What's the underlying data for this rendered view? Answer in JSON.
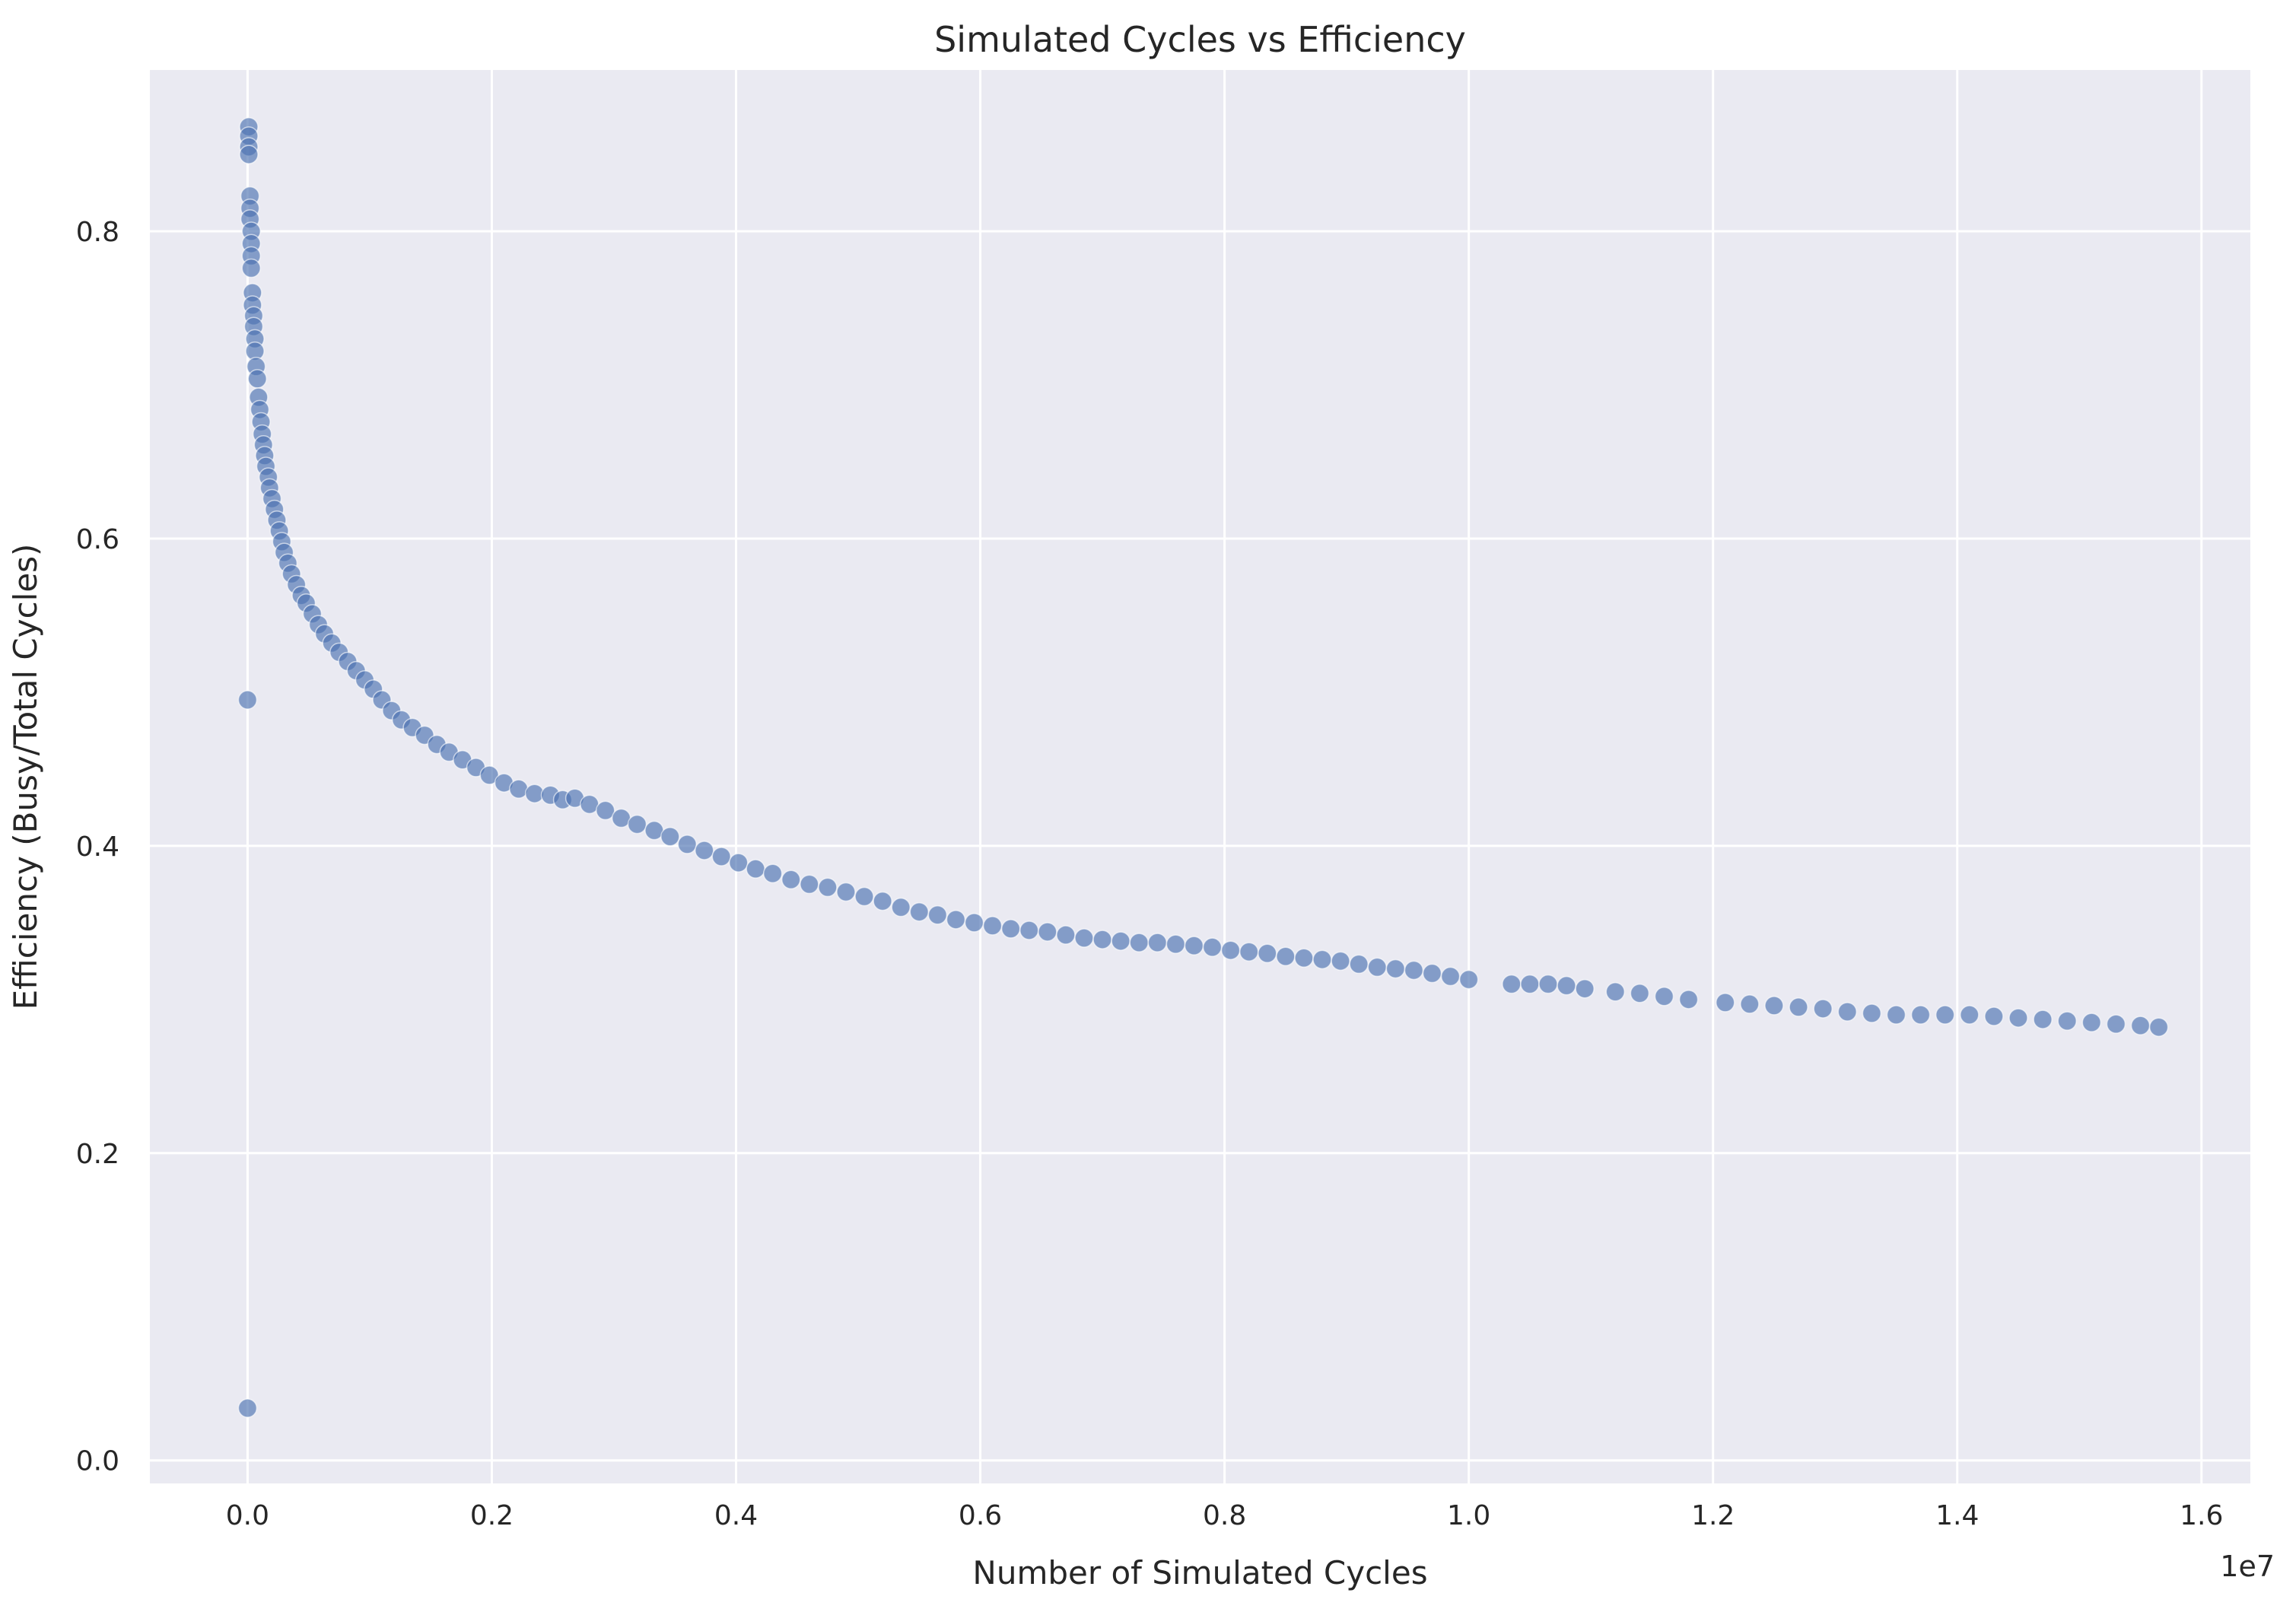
{
  "chart_data": {
    "type": "scatter",
    "title": "Simulated Cycles vs Efficiency",
    "xlabel": "Number of Simulated Cycles",
    "ylabel": "Efficiency (Busy/Total Cycles)",
    "x_offset_text": "1e7",
    "xlim": [
      -0.08,
      1.64
    ],
    "ylim": [
      -0.015,
      0.905
    ],
    "x_ticks": [
      0.0,
      0.2,
      0.4,
      0.6,
      0.8,
      1.0,
      1.2,
      1.4,
      1.6
    ],
    "x_tick_labels": [
      "0.0",
      "0.2",
      "0.4",
      "0.6",
      "0.8",
      "1.0",
      "1.2",
      "1.4",
      "1.6"
    ],
    "y_ticks": [
      0.0,
      0.2,
      0.4,
      0.6,
      0.8
    ],
    "y_tick_labels": [
      "0.0",
      "0.2",
      "0.4",
      "0.6",
      "0.8"
    ],
    "grid": true,
    "legend": "none",
    "colors": {
      "background": "#eaeaf2",
      "grid": "#ffffff",
      "marker": "#4c72b0"
    },
    "marker_alpha": 0.65,
    "x_units_note": "x values are in units of 1e7 cycles",
    "points": [
      [
        0.0,
        0.034
      ],
      [
        0.0,
        0.495
      ],
      [
        0.001,
        0.868
      ],
      [
        0.001,
        0.862
      ],
      [
        0.001,
        0.855
      ],
      [
        0.001,
        0.85
      ],
      [
        0.002,
        0.823
      ],
      [
        0.002,
        0.815
      ],
      [
        0.002,
        0.808
      ],
      [
        0.003,
        0.8
      ],
      [
        0.003,
        0.792
      ],
      [
        0.003,
        0.784
      ],
      [
        0.003,
        0.776
      ],
      [
        0.004,
        0.76
      ],
      [
        0.004,
        0.752
      ],
      [
        0.005,
        0.745
      ],
      [
        0.005,
        0.738
      ],
      [
        0.006,
        0.73
      ],
      [
        0.006,
        0.722
      ],
      [
        0.007,
        0.712
      ],
      [
        0.008,
        0.704
      ],
      [
        0.009,
        0.692
      ],
      [
        0.01,
        0.684
      ],
      [
        0.011,
        0.676
      ],
      [
        0.012,
        0.668
      ],
      [
        0.013,
        0.661
      ],
      [
        0.014,
        0.654
      ],
      [
        0.015,
        0.647
      ],
      [
        0.017,
        0.64
      ],
      [
        0.018,
        0.633
      ],
      [
        0.02,
        0.626
      ],
      [
        0.022,
        0.619
      ],
      [
        0.024,
        0.612
      ],
      [
        0.026,
        0.605
      ],
      [
        0.028,
        0.598
      ],
      [
        0.03,
        0.591
      ],
      [
        0.033,
        0.584
      ],
      [
        0.036,
        0.577
      ],
      [
        0.04,
        0.57
      ],
      [
        0.044,
        0.563
      ],
      [
        0.048,
        0.558
      ],
      [
        0.053,
        0.551
      ],
      [
        0.058,
        0.544
      ],
      [
        0.063,
        0.538
      ],
      [
        0.069,
        0.532
      ],
      [
        0.075,
        0.526
      ],
      [
        0.082,
        0.52
      ],
      [
        0.089,
        0.514
      ],
      [
        0.096,
        0.508
      ],
      [
        0.103,
        0.502
      ],
      [
        0.11,
        0.495
      ],
      [
        0.118,
        0.488
      ],
      [
        0.126,
        0.482
      ],
      [
        0.135,
        0.477
      ],
      [
        0.145,
        0.472
      ],
      [
        0.155,
        0.466
      ],
      [
        0.165,
        0.461
      ],
      [
        0.176,
        0.456
      ],
      [
        0.187,
        0.451
      ],
      [
        0.198,
        0.446
      ],
      [
        0.21,
        0.441
      ],
      [
        0.222,
        0.437
      ],
      [
        0.235,
        0.434
      ],
      [
        0.248,
        0.433
      ],
      [
        0.258,
        0.43
      ],
      [
        0.268,
        0.431
      ],
      [
        0.28,
        0.427
      ],
      [
        0.293,
        0.423
      ],
      [
        0.306,
        0.418
      ],
      [
        0.319,
        0.414
      ],
      [
        0.333,
        0.41
      ],
      [
        0.346,
        0.406
      ],
      [
        0.36,
        0.401
      ],
      [
        0.374,
        0.397
      ],
      [
        0.388,
        0.393
      ],
      [
        0.402,
        0.389
      ],
      [
        0.416,
        0.385
      ],
      [
        0.43,
        0.382
      ],
      [
        0.445,
        0.378
      ],
      [
        0.46,
        0.375
      ],
      [
        0.475,
        0.373
      ],
      [
        0.49,
        0.37
      ],
      [
        0.505,
        0.367
      ],
      [
        0.52,
        0.364
      ],
      [
        0.535,
        0.36
      ],
      [
        0.55,
        0.357
      ],
      [
        0.565,
        0.355
      ],
      [
        0.58,
        0.352
      ],
      [
        0.595,
        0.35
      ],
      [
        0.61,
        0.348
      ],
      [
        0.625,
        0.346
      ],
      [
        0.64,
        0.345
      ],
      [
        0.655,
        0.344
      ],
      [
        0.67,
        0.342
      ],
      [
        0.685,
        0.34
      ],
      [
        0.7,
        0.339
      ],
      [
        0.715,
        0.338
      ],
      [
        0.73,
        0.337
      ],
      [
        0.745,
        0.337
      ],
      [
        0.76,
        0.336
      ],
      [
        0.775,
        0.335
      ],
      [
        0.79,
        0.334
      ],
      [
        0.805,
        0.332
      ],
      [
        0.82,
        0.331
      ],
      [
        0.835,
        0.33
      ],
      [
        0.85,
        0.328
      ],
      [
        0.865,
        0.327
      ],
      [
        0.88,
        0.326
      ],
      [
        0.895,
        0.325
      ],
      [
        0.91,
        0.323
      ],
      [
        0.925,
        0.321
      ],
      [
        0.94,
        0.32
      ],
      [
        0.955,
        0.319
      ],
      [
        0.97,
        0.317
      ],
      [
        0.985,
        0.315
      ],
      [
        1.0,
        0.313
      ],
      [
        1.035,
        0.31
      ],
      [
        1.05,
        0.31
      ],
      [
        1.065,
        0.31
      ],
      [
        1.08,
        0.309
      ],
      [
        1.095,
        0.307
      ],
      [
        1.12,
        0.305
      ],
      [
        1.14,
        0.304
      ],
      [
        1.16,
        0.302
      ],
      [
        1.18,
        0.3
      ],
      [
        1.21,
        0.298
      ],
      [
        1.23,
        0.297
      ],
      [
        1.25,
        0.296
      ],
      [
        1.27,
        0.295
      ],
      [
        1.29,
        0.294
      ],
      [
        1.31,
        0.292
      ],
      [
        1.33,
        0.291
      ],
      [
        1.35,
        0.29
      ],
      [
        1.37,
        0.29
      ],
      [
        1.39,
        0.29
      ],
      [
        1.41,
        0.29
      ],
      [
        1.43,
        0.289
      ],
      [
        1.45,
        0.288
      ],
      [
        1.47,
        0.287
      ],
      [
        1.49,
        0.286
      ],
      [
        1.51,
        0.285
      ],
      [
        1.53,
        0.284
      ],
      [
        1.55,
        0.283
      ],
      [
        1.565,
        0.282
      ]
    ]
  }
}
